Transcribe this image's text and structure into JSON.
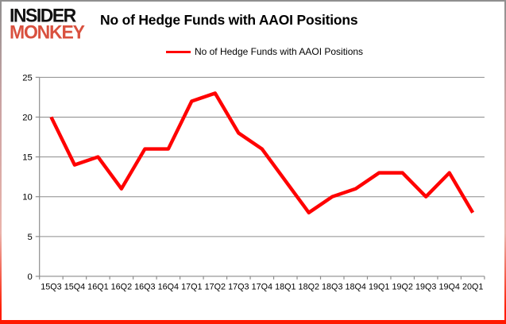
{
  "logo": {
    "line1": "INSIDER",
    "line2": "MONKEY"
  },
  "header": {
    "title": "No of Hedge Funds with AAOI Positions"
  },
  "legend": {
    "label": "No of Hedge Funds with AAOI Positions",
    "marker_color": "#ff0000"
  },
  "chart_data": {
    "type": "line",
    "title": "No of Hedge Funds with AAOI Positions",
    "series": [
      {
        "name": "No of Hedge Funds with AAOI Positions",
        "values": [
          20,
          14,
          15,
          11,
          16,
          16,
          22,
          23,
          18,
          16,
          12,
          8,
          10,
          11,
          13,
          13,
          10,
          13,
          8
        ]
      }
    ],
    "categories": [
      "15Q3",
      "15Q4",
      "16Q1",
      "16Q2",
      "16Q3",
      "16Q4",
      "17Q1",
      "17Q2",
      "17Q3",
      "17Q4",
      "18Q1",
      "18Q2",
      "18Q3",
      "18Q4",
      "19Q1",
      "19Q2",
      "19Q3",
      "19Q4",
      "20Q1"
    ],
    "ylim": [
      0,
      25
    ],
    "yticks": [
      0,
      5,
      10,
      15,
      20,
      25
    ],
    "grid": true,
    "legend_position": "top",
    "line_color": "#ff0000",
    "line_width": 4.5,
    "grid_color": "#8c8c8c",
    "axis_color": "#8c8c8c",
    "label_color": "#000000"
  }
}
